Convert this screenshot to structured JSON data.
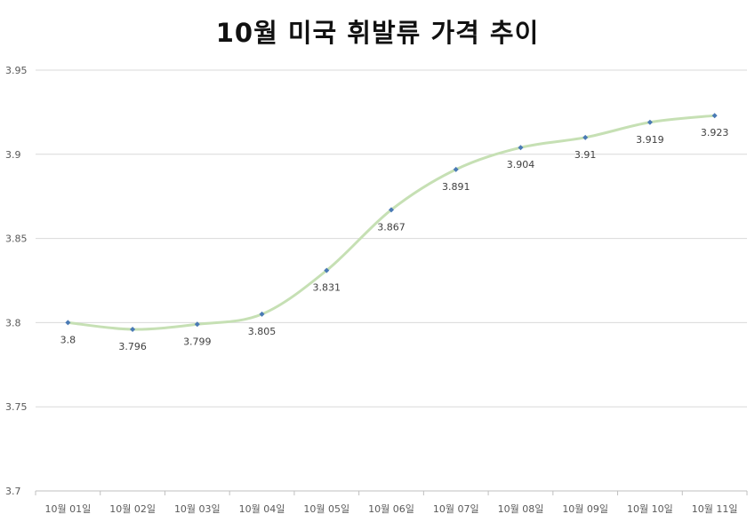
{
  "chart_data": {
    "type": "line",
    "title": "10월 미국 휘발류 가격 추이",
    "xlabel": "",
    "ylabel": "",
    "categories": [
      "10월 01일",
      "10월 02일",
      "10월 03일",
      "10월 04일",
      "10월 05일",
      "10월 06일",
      "10월 07일",
      "10월 08일",
      "10월 09일",
      "10월 10일",
      "10월 11일"
    ],
    "series": [
      {
        "values": [
          3.8,
          3.796,
          3.799,
          3.805,
          3.831,
          3.867,
          3.891,
          3.904,
          3.91,
          3.919,
          3.923
        ]
      }
    ],
    "data_labels": [
      "3.8",
      "3.796",
      "3.799",
      "3.805",
      "3.831",
      "3.867",
      "3.891",
      "3.904",
      "3.91",
      "3.919",
      "3.923"
    ],
    "ylim": [
      3.7,
      3.95
    ],
    "yticks": [
      3.7,
      3.75,
      3.8,
      3.85,
      3.9,
      3.95
    ],
    "ytick_labels": [
      "3.7",
      "3.75",
      "3.8",
      "3.85",
      "3.9",
      "3.95"
    ],
    "grid": true,
    "smooth": true,
    "legend": "none",
    "colors": {
      "line": "#c6e0b4",
      "marker": "#4a7ab5",
      "grid": "#d9d9d9",
      "axis": "#bfbfbf"
    }
  }
}
